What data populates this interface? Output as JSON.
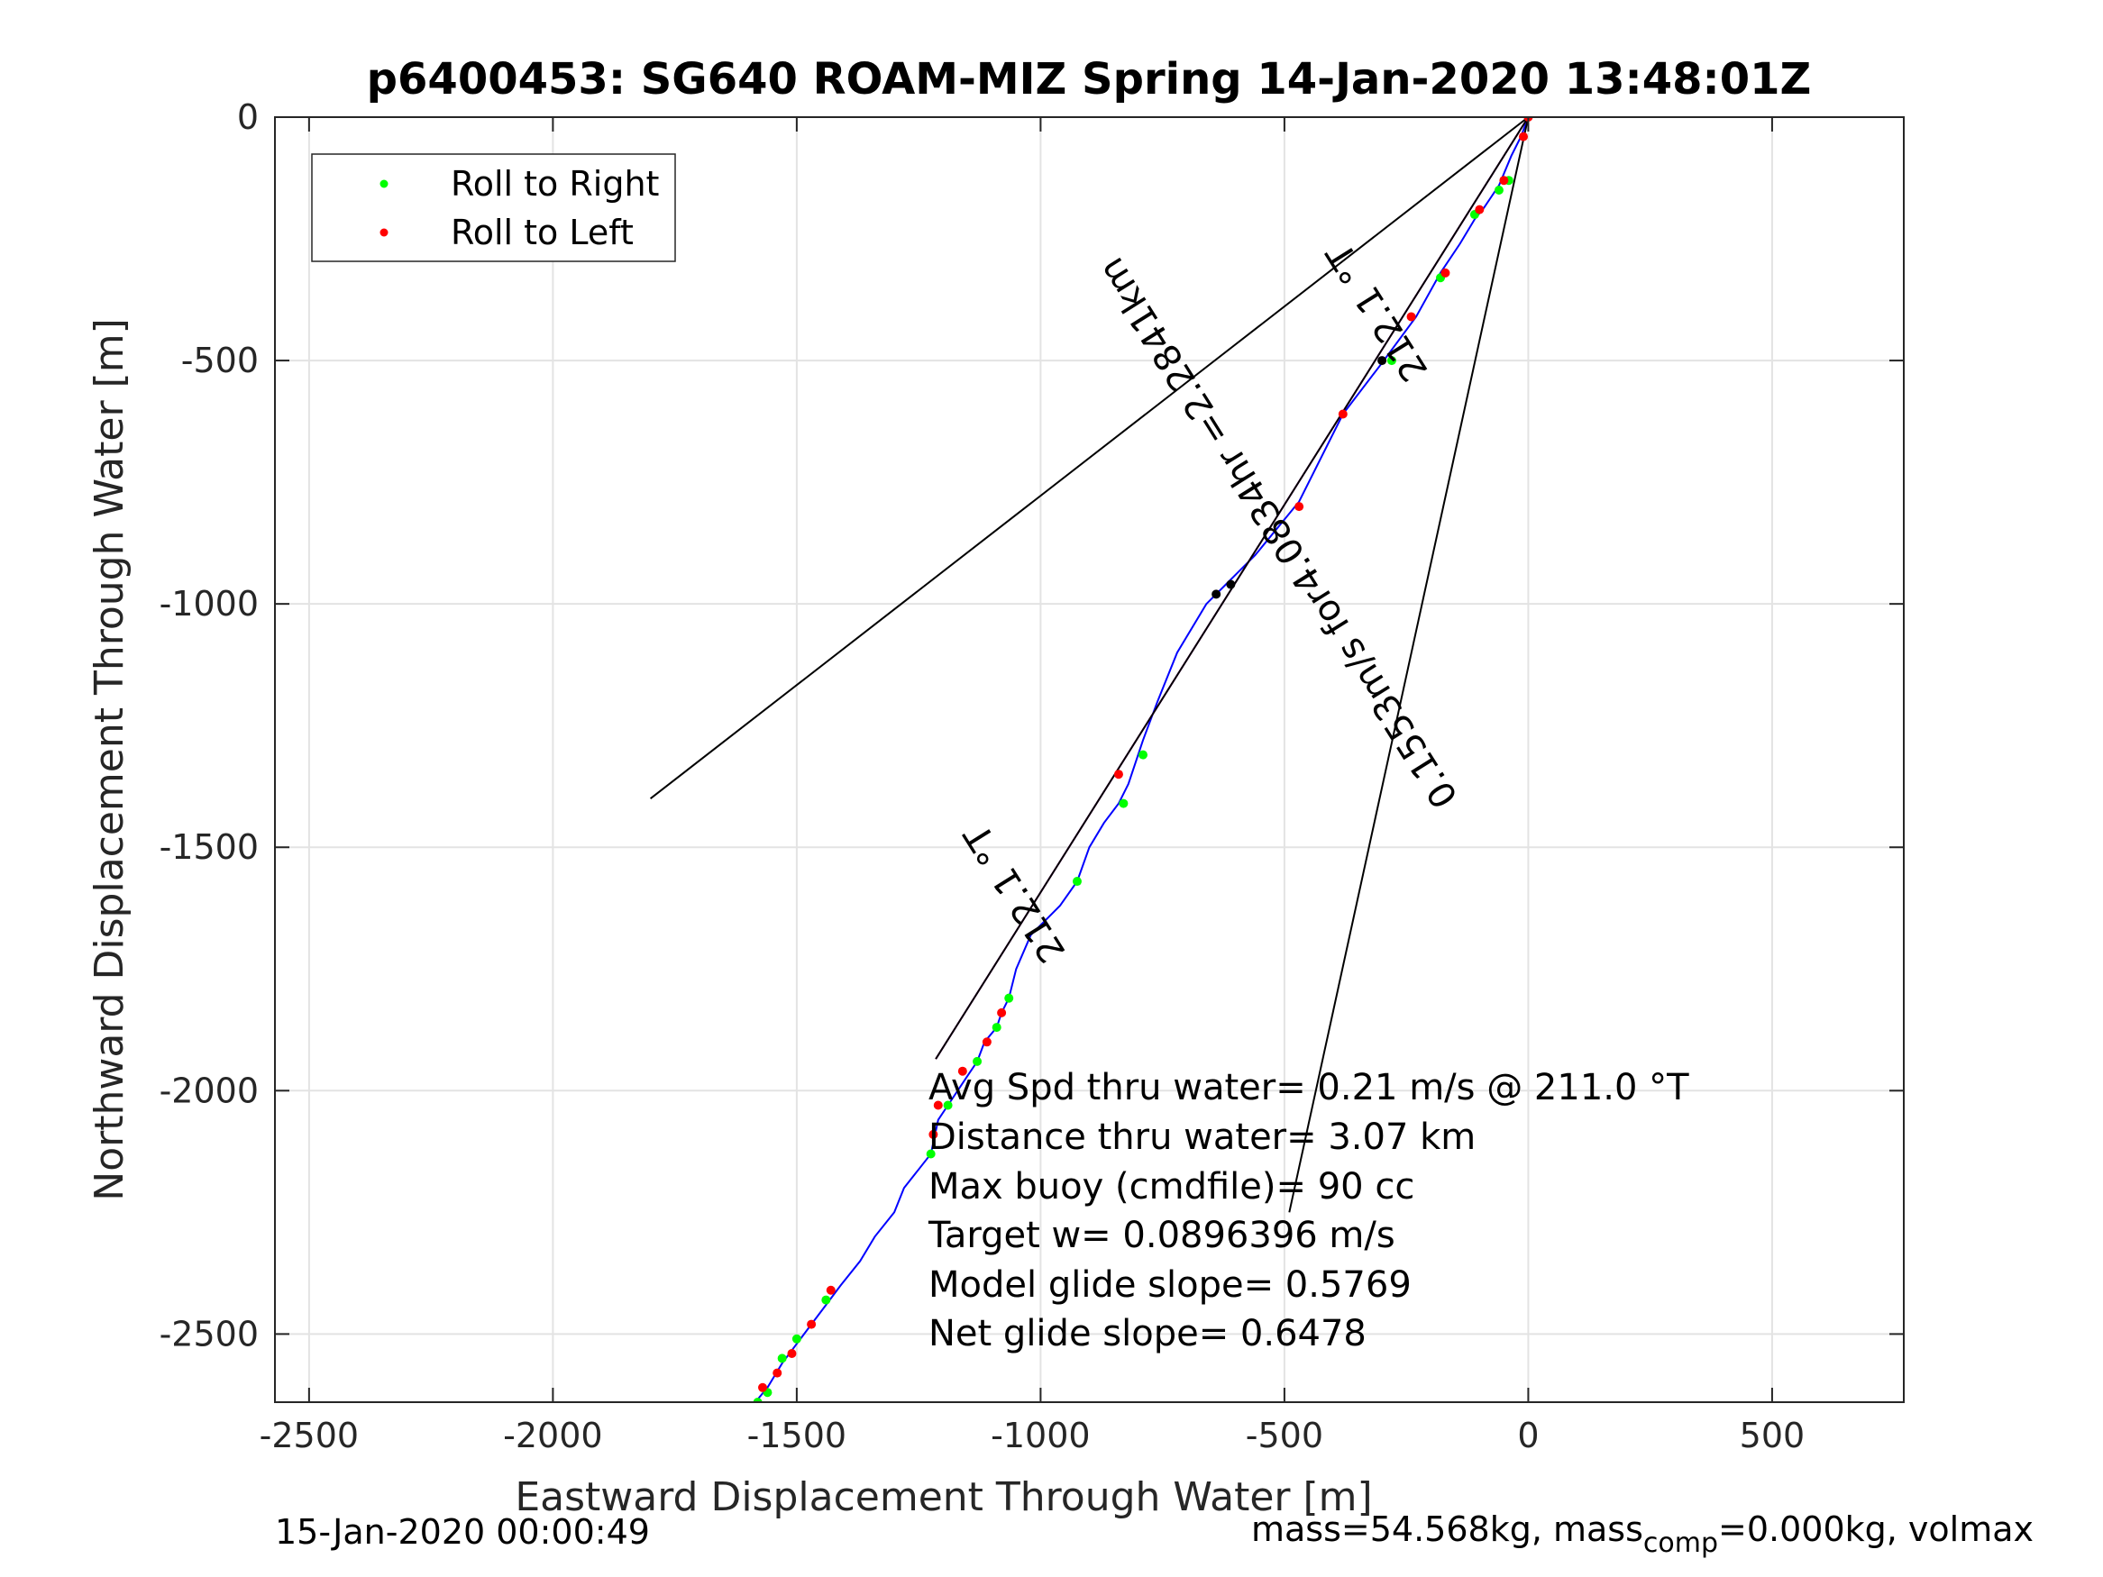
{
  "title": "p6400453: SG640 ROAM-MIZ Spring 14-Jan-2020 13:48:01Z",
  "xlabel": "Eastward Displacement Through Water [m]",
  "ylabel": "Northward Displacement Through Water [m]",
  "footer_left": "15-Jan-2020 00:00:49",
  "footer_right": {
    "part1": "mass=54.568kg, mass",
    "subscript": "comp",
    "part2": "=0.000kg, volmax"
  },
  "legend": {
    "position": "top-left",
    "items": [
      {
        "label": "Roll to Right",
        "color": "#00ff00"
      },
      {
        "label": "Roll to Left",
        "color": "#ff0000"
      }
    ]
  },
  "annotations": [
    "Avg Spd thru water=  0.21 m/s @ 211.0 °T",
    "Distance thru water=  3.07 km",
    "Max buoy (cmdfile)= 90 cc",
    "Target w= 0.0896396 m/s",
    "Model glide slope= 0.5769",
    "Net glide slope= 0.6478"
  ],
  "rotated_labels": {
    "heading_top": "212.1 °T",
    "speed": "0.1553m/s for4.0834hr =2.2841km",
    "heading_mid": "212.1 °T"
  },
  "colors": {
    "track": "#0000ff",
    "heading_line": "#cc00cc",
    "reference_lines": "#000000",
    "roll_right": "#00ff00",
    "roll_left": "#ff0000",
    "grid": "#e3e3e3"
  },
  "chart_data": {
    "type": "line",
    "grid": true,
    "xlim": [
      -2570,
      770
    ],
    "ylim": [
      -2640,
      0
    ],
    "xticks": [
      -2500,
      -2000,
      -1500,
      -1000,
      -500,
      0,
      500
    ],
    "yticks": [
      0,
      -500,
      -1000,
      -1500,
      -2000,
      -2500
    ],
    "xtick_labels": [
      "-2500",
      "-2000",
      "-1500",
      "-1000",
      "-500",
      "0",
      "500"
    ],
    "ytick_labels": [
      "0",
      "-500",
      "-1000",
      "-1500",
      "-2000",
      "-2500"
    ],
    "series": [
      {
        "id": "track",
        "style": "line",
        "color": "#0000ff",
        "points": [
          [
            0,
            0
          ],
          [
            -15,
            -40
          ],
          [
            -35,
            -80
          ],
          [
            -60,
            -140
          ],
          [
            -90,
            -185
          ],
          [
            -110,
            -210
          ],
          [
            -140,
            -260
          ],
          [
            -180,
            -320
          ],
          [
            -230,
            -410
          ],
          [
            -300,
            -505
          ],
          [
            -380,
            -610
          ],
          [
            -470,
            -790
          ],
          [
            -560,
            -900
          ],
          [
            -620,
            -960
          ],
          [
            -660,
            -1000
          ],
          [
            -720,
            -1100
          ],
          [
            -760,
            -1200
          ],
          [
            -790,
            -1280
          ],
          [
            -820,
            -1370
          ],
          [
            -840,
            -1410
          ],
          [
            -870,
            -1450
          ],
          [
            -900,
            -1500
          ],
          [
            -925,
            -1570
          ],
          [
            -960,
            -1620
          ],
          [
            -1020,
            -1680
          ],
          [
            -1050,
            -1750
          ],
          [
            -1065,
            -1810
          ],
          [
            -1080,
            -1840
          ],
          [
            -1090,
            -1870
          ],
          [
            -1115,
            -1900
          ],
          [
            -1130,
            -1940
          ],
          [
            -1150,
            -1970
          ],
          [
            -1170,
            -2000
          ],
          [
            -1190,
            -2030
          ],
          [
            -1210,
            -2060
          ],
          [
            -1225,
            -2130
          ],
          [
            -1280,
            -2200
          ],
          [
            -1300,
            -2250
          ],
          [
            -1340,
            -2300
          ],
          [
            -1370,
            -2350
          ],
          [
            -1410,
            -2400
          ],
          [
            -1440,
            -2440
          ],
          [
            -1470,
            -2480
          ],
          [
            -1500,
            -2520
          ],
          [
            -1530,
            -2560
          ],
          [
            -1560,
            -2610
          ],
          [
            -1585,
            -2640
          ]
        ]
      },
      {
        "id": "heading-212.1",
        "style": "line",
        "color": "#cc00cc",
        "points": [
          [
            0,
            0
          ],
          [
            -1215,
            -1935
          ]
        ]
      },
      {
        "id": "reference-line-1",
        "style": "line",
        "color": "#000000",
        "points": [
          [
            0,
            0
          ],
          [
            -1800,
            -1400
          ]
        ]
      },
      {
        "id": "reference-line-2",
        "style": "line",
        "color": "#000000",
        "points": [
          [
            0,
            0
          ],
          [
            -1215,
            -1935
          ]
        ]
      },
      {
        "id": "reference-line-3",
        "style": "line",
        "color": "#000000",
        "points": [
          [
            0,
            0
          ],
          [
            -490,
            -2250
          ]
        ]
      },
      {
        "id": "roll-right",
        "name": "Roll to Right",
        "style": "scatter",
        "color": "#00ff00",
        "points": [
          [
            -40,
            -130
          ],
          [
            -60,
            -150
          ],
          [
            -110,
            -200
          ],
          [
            -180,
            -330
          ],
          [
            -280,
            -500
          ],
          [
            -790,
            -1310
          ],
          [
            -830,
            -1410
          ],
          [
            -925,
            -1570
          ],
          [
            -1065,
            -1810
          ],
          [
            -1090,
            -1870
          ],
          [
            -1130,
            -1940
          ],
          [
            -1190,
            -2030
          ],
          [
            -1225,
            -2130
          ],
          [
            -1440,
            -2430
          ],
          [
            -1500,
            -2510
          ],
          [
            -1530,
            -2550
          ],
          [
            -1560,
            -2620
          ],
          [
            -1580,
            -2640
          ]
        ]
      },
      {
        "id": "roll-left",
        "name": "Roll to Left",
        "style": "scatter",
        "color": "#ff0000",
        "points": [
          [
            0,
            0
          ],
          [
            -10,
            -40
          ],
          [
            -50,
            -130
          ],
          [
            -100,
            -190
          ],
          [
            -170,
            -320
          ],
          [
            -240,
            -410
          ],
          [
            -380,
            -610
          ],
          [
            -470,
            -800
          ],
          [
            -840,
            -1350
          ],
          [
            -1080,
            -1840
          ],
          [
            -1110,
            -1900
          ],
          [
            -1160,
            -1960
          ],
          [
            -1210,
            -2030
          ],
          [
            -1220,
            -2090
          ],
          [
            -1430,
            -2410
          ],
          [
            -1470,
            -2480
          ],
          [
            -1510,
            -2540
          ],
          [
            -1540,
            -2580
          ],
          [
            -1570,
            -2610
          ]
        ]
      },
      {
        "id": "dive-marks",
        "style": "scatter",
        "color": "#000000",
        "points": [
          [
            -300,
            -500
          ],
          [
            -610,
            -960
          ],
          [
            -640,
            -980
          ]
        ]
      }
    ]
  }
}
